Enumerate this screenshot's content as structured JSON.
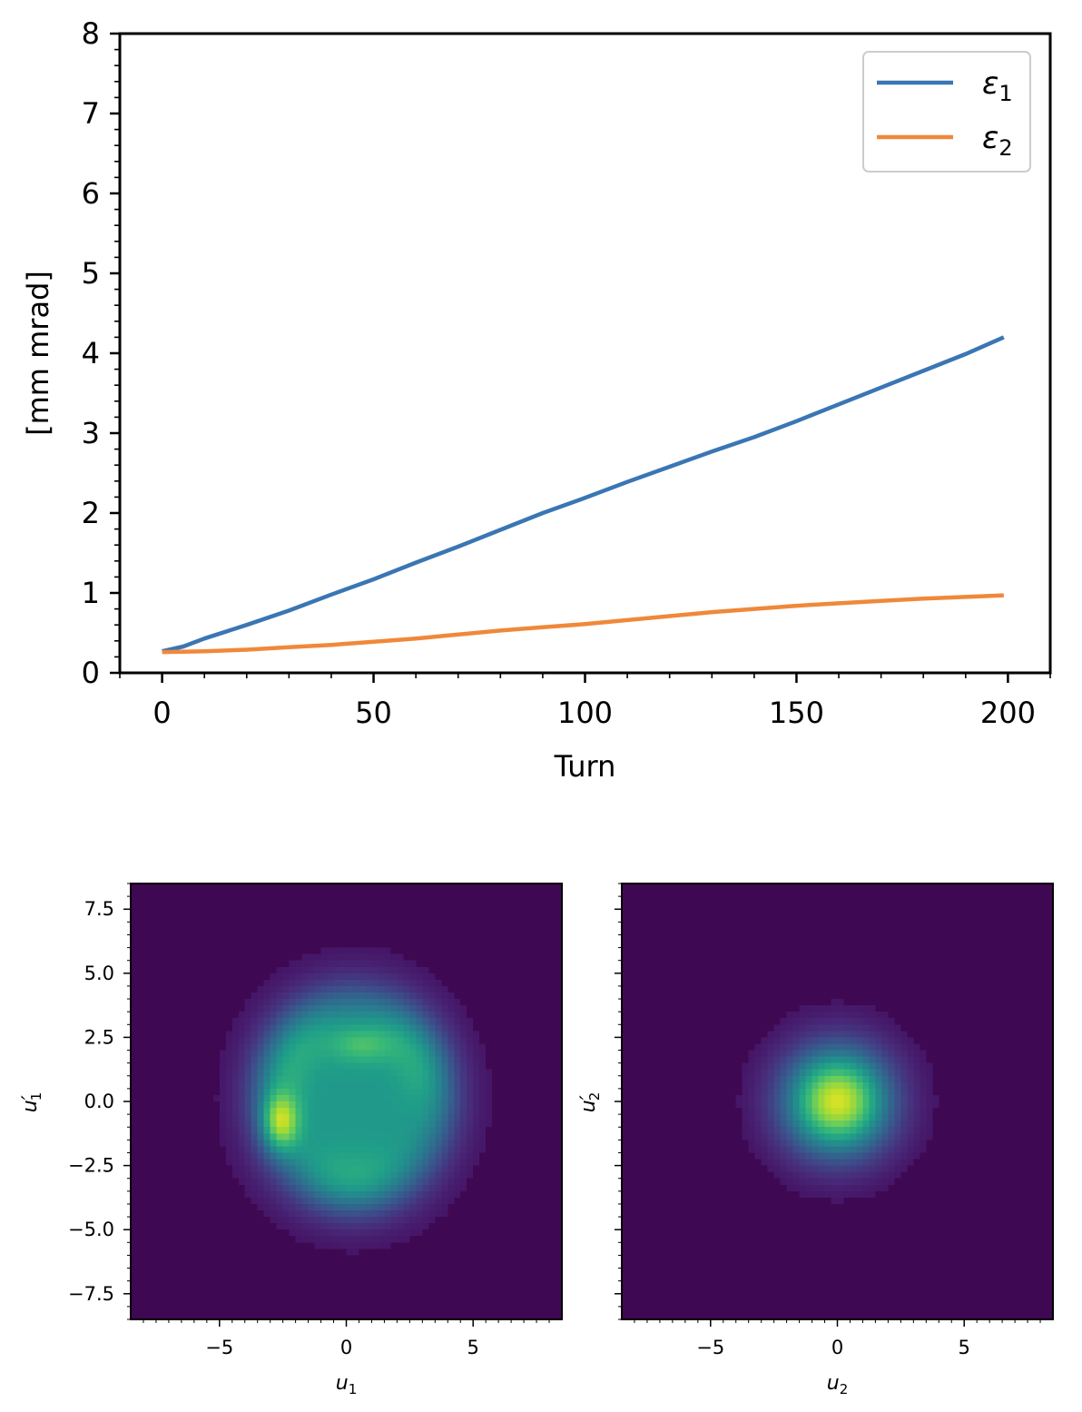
{
  "chart_data": [
    {
      "type": "line",
      "title": "",
      "xlabel": "Turn",
      "ylabel": "[mm mrad]",
      "xlim": [
        -10,
        210
      ],
      "ylim": [
        0,
        8
      ],
      "xticks": [
        0,
        50,
        100,
        150,
        200
      ],
      "yticks": [
        0,
        1,
        2,
        3,
        4,
        5,
        6,
        7,
        8
      ],
      "legend_position": "top-right",
      "series": [
        {
          "name": "ε1",
          "label_main": "ε",
          "label_sub": "1",
          "color": "#3a76b3",
          "x": [
            0,
            5,
            10,
            20,
            30,
            40,
            50,
            60,
            70,
            80,
            90,
            100,
            110,
            120,
            130,
            140,
            150,
            160,
            170,
            180,
            190,
            199
          ],
          "y": [
            0.27,
            0.33,
            0.43,
            0.6,
            0.78,
            0.98,
            1.17,
            1.38,
            1.58,
            1.79,
            2.0,
            2.19,
            2.39,
            2.58,
            2.77,
            2.95,
            3.15,
            3.36,
            3.57,
            3.78,
            3.99,
            4.2
          ]
        },
        {
          "name": "ε2",
          "label_main": "ε",
          "label_sub": "2",
          "color": "#f0883a",
          "x": [
            0,
            10,
            20,
            30,
            40,
            50,
            60,
            70,
            80,
            90,
            100,
            110,
            120,
            130,
            140,
            150,
            160,
            170,
            180,
            190,
            199
          ],
          "y": [
            0.26,
            0.27,
            0.29,
            0.32,
            0.35,
            0.39,
            0.43,
            0.48,
            0.53,
            0.57,
            0.61,
            0.66,
            0.71,
            0.76,
            0.8,
            0.84,
            0.87,
            0.9,
            0.93,
            0.95,
            0.97
          ]
        }
      ]
    },
    {
      "type": "heatmap",
      "colormap": "viridis",
      "xlabel_main": "u",
      "xlabel_sub": "1",
      "ylabel_main": "u′",
      "ylabel_sub": "1",
      "xlim": [
        -8.5,
        8.5
      ],
      "ylim": [
        -8.5,
        8.5
      ],
      "xticks": [
        -5,
        0,
        5
      ],
      "xtick_labels": [
        "−5",
        "0",
        "5"
      ],
      "yticks": [
        7.5,
        5.0,
        2.5,
        0.0,
        -2.5,
        -5.0,
        -7.5
      ],
      "ytick_labels": [
        "7.5",
        "5.0",
        "2.5",
        "0.0",
        "−2.5",
        "−5.0",
        "−7.5"
      ],
      "distribution": {
        "shape": "ring",
        "center": [
          0.3,
          0.1
        ],
        "radius": 3.6,
        "hotspot": [
          -2.6,
          -0.8
        ]
      }
    },
    {
      "type": "heatmap",
      "colormap": "viridis",
      "xlabel_main": "u",
      "xlabel_sub": "2",
      "ylabel_main": "u′",
      "ylabel_sub": "2",
      "xlim": [
        -8.5,
        8.5
      ],
      "ylim": [
        -8.5,
        8.5
      ],
      "xticks": [
        -5,
        0,
        5
      ],
      "xtick_labels": [
        "−5",
        "0",
        "5"
      ],
      "yticks": [
        7.5,
        5.0,
        2.5,
        0.0,
        -2.5,
        -5.0,
        -7.5
      ],
      "distribution": {
        "shape": "gaussian",
        "center": [
          0,
          0
        ],
        "sigma": 1.1
      }
    }
  ]
}
